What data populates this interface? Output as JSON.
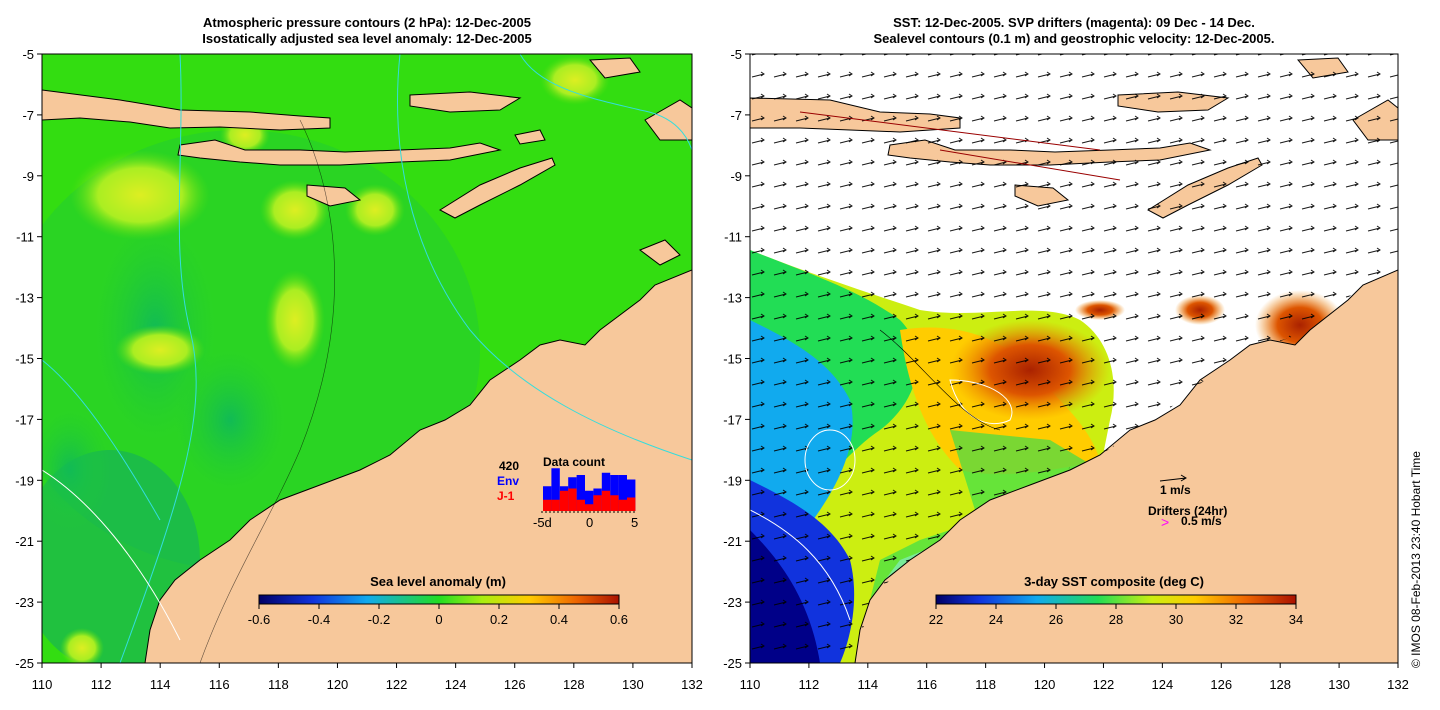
{
  "left_panel": {
    "title_line1": "Atmospheric pressure contours (2 hPa): 12-Dec-2005",
    "title_line2": "Isostatically adjusted sea level anomaly: 12-Dec-2005",
    "colorbar": {
      "label": "Sea level anomaly (m)",
      "ticks": [
        "-0.6",
        "-0.4",
        "-0.2",
        "0",
        "0.2",
        "0.4",
        "0.6"
      ]
    },
    "data_count": {
      "title": "Data count",
      "total": "420",
      "env_label": "Env",
      "j1_label": "J-1",
      "axis_ticks": [
        "-5d",
        "0",
        "5"
      ],
      "env_counts": [
        0.55,
        0.95,
        0.55,
        0.75,
        0.8,
        0.45,
        0.5,
        0.85,
        0.8,
        0.8,
        0.7
      ],
      "j1_counts": [
        0.25,
        0.25,
        0.45,
        0.5,
        0.25,
        0.15,
        0.35,
        0.45,
        0.35,
        0.25,
        0.3
      ],
      "env_color": "#0000ff",
      "j1_color": "#ff0000"
    }
  },
  "right_panel": {
    "title_line1": "SST: 12-Dec-2005. SVP drifters (magenta): 09 Dec - 14 Dec.",
    "title_line2": "Sealevel contours (0.1 m) and geostrophic velocity: 12-Dec-2005.",
    "colorbar": {
      "label": "3-day SST composite (deg C)",
      "ticks": [
        "22",
        "24",
        "26",
        "28",
        "30",
        "32",
        "34"
      ]
    },
    "velocity_scale_label": "1 m/s",
    "drifters_label": "Drifters (24hr)",
    "drifter_speed_label": "0.5 m/s",
    "drifter_color": "#ff00ff"
  },
  "axes": {
    "x_ticks": [
      "110",
      "112",
      "114",
      "116",
      "118",
      "120",
      "122",
      "124",
      "126",
      "128",
      "130",
      "132"
    ],
    "y_ticks": [
      "-5",
      "-7",
      "-9",
      "-11",
      "-13",
      "-15",
      "-17",
      "-19",
      "-21",
      "-23",
      "-25"
    ]
  },
  "colors": {
    "land": "#f7c89b",
    "sea_mean": "#33dd11",
    "coast_line": "#000000"
  },
  "credit": "© IMOS 08-Feb-2013 23:40 Hobart Time"
}
